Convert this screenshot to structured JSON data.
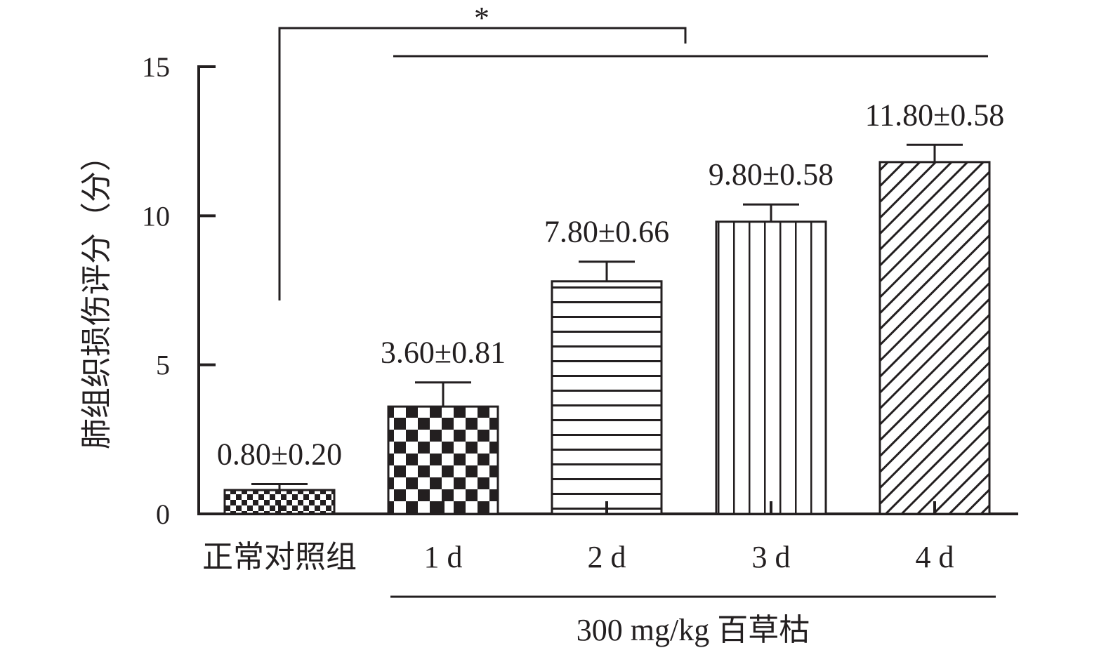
{
  "chart_data": {
    "type": "bar",
    "ylabel": "肺组织损伤评分（分）",
    "ylim": [
      0,
      15
    ],
    "yticks": [
      0,
      5,
      10,
      15
    ],
    "categories": [
      "正常对照组",
      "1 d",
      "2 d",
      "3 d",
      "4 d"
    ],
    "values": [
      0.8,
      3.6,
      7.8,
      9.8,
      11.8
    ],
    "errors": [
      0.2,
      0.81,
      0.66,
      0.58,
      0.58
    ],
    "data_labels": [
      "0.80±0.20",
      "3.60±0.81",
      "7.80±0.66",
      "9.80±0.58",
      "11.80±0.58"
    ],
    "patterns": [
      "fine-checker",
      "checker",
      "horizontal-lines",
      "vertical-lines",
      "diagonal-lines"
    ],
    "group_label": "300 mg/kg 百草枯",
    "significance_marker": "*",
    "grid": false,
    "legend": "none",
    "colors": {
      "ink": "#231f20",
      "background": "#ffffff"
    }
  }
}
